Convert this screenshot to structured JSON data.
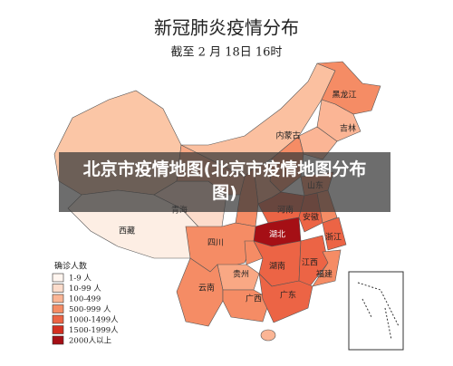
{
  "title": "新冠肺炎疫情分布",
  "subtitle": "截至 2 月 18日 16时",
  "caption": "北京市疫情地图(北京市疫情地图分布图)",
  "legend": {
    "title": "确诊人数",
    "items": [
      {
        "label": "1-9 人",
        "color": "#fff5ef"
      },
      {
        "label": "10-99 人",
        "color": "#fddccb"
      },
      {
        "label": "100-499",
        "color": "#fbb595"
      },
      {
        "label": "500-999 人",
        "color": "#f58c65"
      },
      {
        "label": "1000-1499人",
        "color": "#ec6445"
      },
      {
        "label": "1500-1999人",
        "color": "#d32f20"
      },
      {
        "label": "2000人以上",
        "color": "#a50f15"
      }
    ]
  },
  "regions": [
    {
      "color": "#fbc6a6"
    },
    {
      "label": "西藏",
      "color": "#fdeee4"
    },
    {
      "label": "青海",
      "color": "#fddccb"
    },
    {
      "color": "#f9a884"
    },
    {
      "label": "内蒙古",
      "color": "#fbc0a0"
    },
    {
      "label": "黑龙江",
      "color": "#f58c65"
    },
    {
      "label": "吉林",
      "color": "#fbb595"
    },
    {
      "color": "#fbb595"
    },
    {
      "color": "#f58c65"
    },
    {
      "color": "#f9a884"
    },
    {
      "color": "#f58c65"
    },
    {
      "label": "山东",
      "color": "#f58c65"
    },
    {
      "label": "河南",
      "color": "#ec6445"
    },
    {
      "label": "湖北",
      "color": "#a50f15"
    },
    {
      "label": "安徽",
      "color": "#ec6445"
    },
    {
      "color": "#f58c65"
    },
    {
      "label": "浙江",
      "color": "#ec6445"
    },
    {
      "label": "四川",
      "color": "#f58c65"
    },
    {
      "color": "#f58c65"
    },
    {
      "label": "湖南",
      "color": "#ec6445"
    },
    {
      "label": "江西",
      "color": "#ec6445"
    },
    {
      "label": "福建",
      "color": "#f58c65"
    },
    {
      "label": "贵州",
      "color": "#f9a884"
    },
    {
      "label": "云南",
      "color": "#f58c65"
    },
    {
      "label": "广西",
      "color": "#f58c65"
    },
    {
      "label": "广东",
      "color": "#ec6445"
    },
    {
      "color": "#fbb595"
    }
  ]
}
